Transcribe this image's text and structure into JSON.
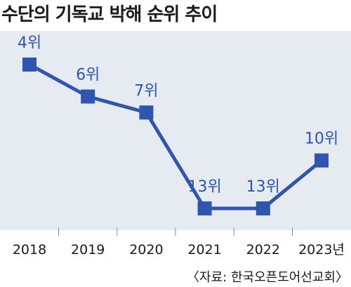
{
  "chart_data": {
    "type": "line",
    "title": "수단의 기독교 박해 순위 추이",
    "categories": [
      "2018",
      "2019",
      "2020",
      "2021",
      "2022",
      "2023년"
    ],
    "series": [
      {
        "values": [
          4,
          6,
          7,
          13,
          13,
          10
        ],
        "labels": [
          "4위",
          "6위",
          "7위",
          "13위",
          "13위",
          "10위"
        ]
      }
    ],
    "xlabel": "",
    "ylabel": "",
    "y_axis": "rank, inverted (1 at top)",
    "grid": false,
    "legend": "none",
    "line_color": "#2e56b0",
    "label_color": "#2e56b0",
    "background_color": "#e6eaf1"
  },
  "source": "〈자료: 한국오픈도어선교회〉"
}
